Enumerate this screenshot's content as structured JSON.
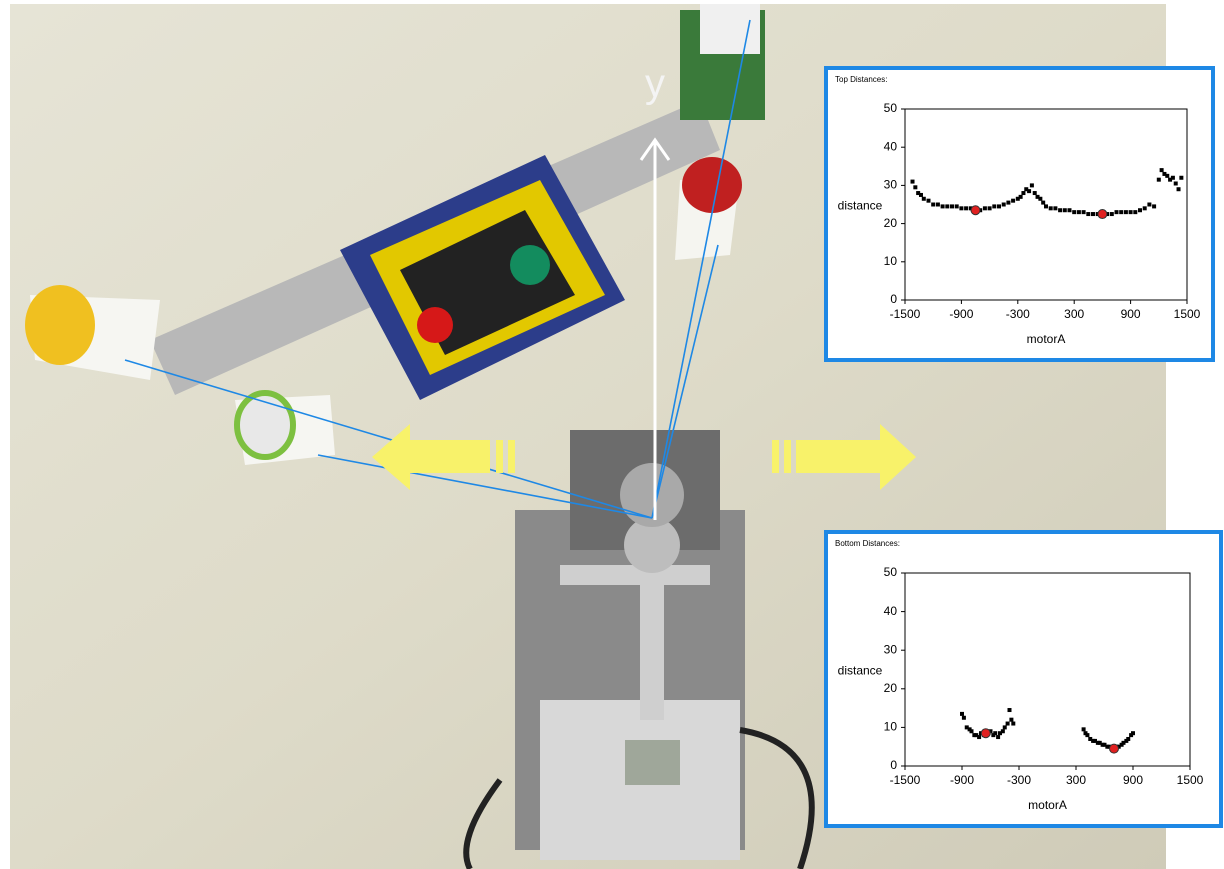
{
  "photo": {
    "label": "y"
  },
  "chart_data": [
    {
      "type": "scatter",
      "title": "Top Distances:",
      "x_label": "motorA",
      "y_label": "distance",
      "xlim": [
        -1500,
        1500
      ],
      "ylim": [
        0,
        50
      ],
      "xticks": [
        -1500,
        -900,
        -300,
        300,
        900,
        1500
      ],
      "yticks": [
        0,
        10,
        20,
        30,
        40,
        50
      ],
      "series": [
        {
          "color": "#000000",
          "x": [
            -1420,
            -1390,
            -1360,
            -1330,
            -1300,
            -1250,
            -1200,
            -1150,
            -1100,
            -1050,
            -1000,
            -950,
            -900,
            -850,
            -800,
            -750,
            -700,
            -650,
            -600,
            -550,
            -500,
            -450,
            -400,
            -350,
            -300,
            -270,
            -240,
            -210,
            -180,
            -150,
            -120,
            -90,
            -60,
            -30,
            0,
            50,
            100,
            150,
            200,
            250,
            300,
            350,
            400,
            450,
            500,
            550,
            600,
            650,
            700,
            750,
            800,
            850,
            900,
            950,
            1000,
            1050,
            1100,
            1150,
            1200,
            1230,
            1260,
            1290,
            1320,
            1350,
            1380,
            1410,
            1440
          ],
          "values": [
            31,
            29.5,
            28,
            27.5,
            26.5,
            26,
            25,
            25,
            24.5,
            24.5,
            24.5,
            24.5,
            24,
            24,
            24,
            23.5,
            23.5,
            24,
            24,
            24.5,
            24.5,
            25,
            25.5,
            26,
            26.5,
            27,
            28,
            29,
            28.5,
            30,
            28,
            27,
            26.5,
            25.5,
            24.5,
            24,
            24,
            23.5,
            23.5,
            23.5,
            23,
            23,
            23,
            22.5,
            22.5,
            22.5,
            22.5,
            22.5,
            22.5,
            23,
            23,
            23,
            23,
            23,
            23.5,
            24,
            25,
            24.5,
            31.5,
            34,
            33,
            32.5,
            31.5,
            32,
            30.5,
            29,
            32
          ]
        },
        {
          "color": "#e02020",
          "x": [
            -750,
            600
          ],
          "values": [
            23.5,
            22.5
          ]
        }
      ]
    },
    {
      "type": "scatter",
      "title": "Bottom Distances:",
      "x_label": "motorA",
      "y_label": "distance",
      "xlim": [
        -1500,
        1500
      ],
      "ylim": [
        0,
        50
      ],
      "xticks": [
        -1500,
        -900,
        -300,
        300,
        900,
        1500
      ],
      "yticks": [
        0,
        10,
        20,
        30,
        40,
        50
      ],
      "series": [
        {
          "color": "#000000",
          "x": [
            -900,
            -880,
            -850,
            -820,
            -800,
            -770,
            -750,
            -720,
            -700,
            -670,
            -650,
            -620,
            -600,
            -570,
            -550,
            -520,
            -500,
            -470,
            -450,
            -420,
            -400,
            -380,
            -360,
            380,
            400,
            420,
            450,
            480,
            500,
            530,
            550,
            580,
            600,
            630,
            650,
            680,
            700,
            730,
            750,
            780,
            800,
            830,
            850,
            880,
            900
          ],
          "values": [
            13.5,
            12.5,
            10,
            9.5,
            9,
            8,
            8,
            7.5,
            8.5,
            8,
            8,
            8.5,
            9,
            8,
            8.5,
            7.5,
            8.5,
            9,
            10,
            11,
            14.5,
            12,
            11,
            9.5,
            8.5,
            8,
            7,
            6.5,
            6.5,
            6,
            6,
            5.5,
            5.5,
            5,
            5,
            4.5,
            4.5,
            5,
            5,
            5.5,
            6,
            6.5,
            7,
            8,
            8.5
          ]
        },
        {
          "color": "#e02020",
          "x": [
            -650,
            700
          ],
          "values": [
            8.5,
            4.5
          ]
        }
      ]
    }
  ]
}
